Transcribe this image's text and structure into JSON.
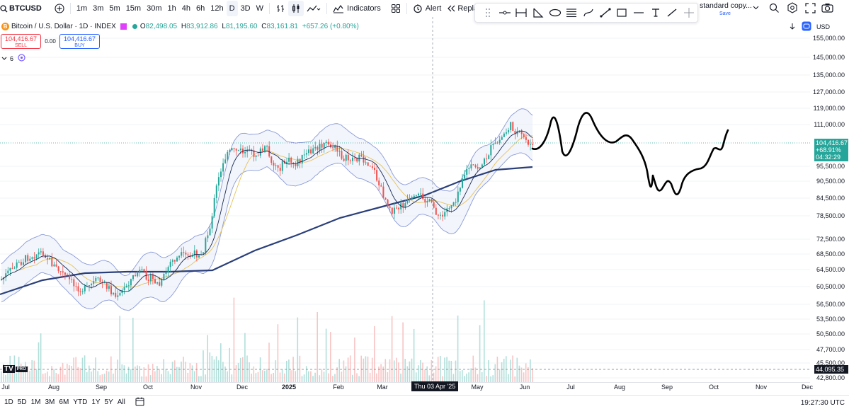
{
  "toolbar": {
    "symbol": "BTCUSD",
    "intervals": [
      "1m",
      "3m",
      "5m",
      "15m",
      "30m",
      "1h",
      "4h",
      "6h",
      "12h",
      "D",
      "3D",
      "W"
    ],
    "active_interval": "D",
    "indicators_label": "Indicators",
    "alert_label": "Alert",
    "replay_label": "Repla",
    "layout_name": "standard copy...",
    "layout_save": "Save"
  },
  "legend": {
    "title": "Bitcoin / U.S. Dollar · 1D · INDEX",
    "o_key": "O",
    "o_val": "82,498.05",
    "h_key": "H",
    "h_val": "83,912.86",
    "l_key": "L",
    "l_val": "81,195.60",
    "c_key": "C",
    "c_val": "83,161.81",
    "change": "+657.26 (+0.80%)",
    "sell_price": "104,416.67",
    "sell_label": "SELL",
    "spread": "0.00",
    "buy_price": "104,416.67",
    "buy_label": "BUY",
    "indicator_count": "6"
  },
  "currency": "USD",
  "price_axis": [
    "155,000.00",
    "145,000.00",
    "135,000.00",
    "127,000.00",
    "119,000.00",
    "111,000.00",
    "95,500.00",
    "90,500.00",
    "84,500.00",
    "78,500.00",
    "72,500.00",
    "68,500.00",
    "64,500.00",
    "60,500.00",
    "56,500.00",
    "53,500.00",
    "50,500.00",
    "47,700.00",
    "45,500.00",
    "42,800.00"
  ],
  "last_price": {
    "price": "104,416.67",
    "change": "+68.91%",
    "countdown": "04:32:29"
  },
  "volume_marker": "44,095.35",
  "time_axis": [
    "Jul",
    "Aug",
    "Sep",
    "Oct",
    "Nov",
    "Dec",
    "2025",
    "Feb",
    "Mar",
    "Apr",
    "May",
    "Jun",
    "Jul",
    "Aug",
    "Sep",
    "Oct",
    "Nov",
    "Dec"
  ],
  "crosshair_date": "Thu 03 Apr '25",
  "bottom": {
    "ranges": [
      "1D",
      "5D",
      "1M",
      "3M",
      "6M",
      "YTD",
      "1Y",
      "5Y",
      "All"
    ],
    "clock": "19:27:30 UTC"
  },
  "colors": {
    "up": "#26a69a",
    "down": "#ef5350",
    "ma_long": "#2a3f7a",
    "bollinger": "#8a9ad8",
    "accent": "#2962ff"
  }
}
